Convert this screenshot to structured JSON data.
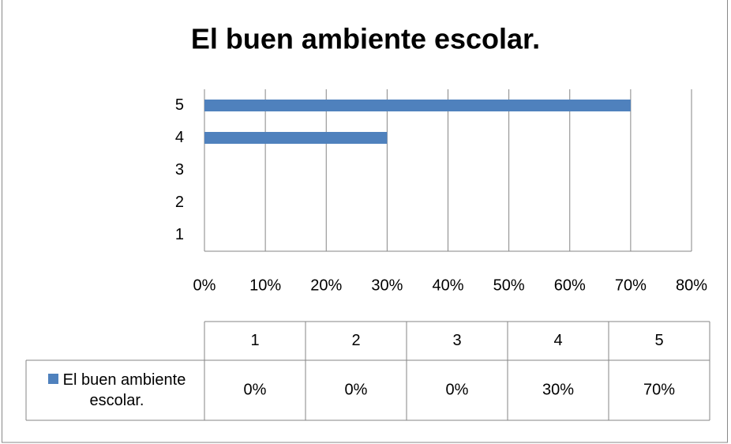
{
  "chart_data": {
    "type": "bar",
    "orientation": "horizontal",
    "title": "El buen ambiente escolar.",
    "categories": [
      "1",
      "2",
      "3",
      "4",
      "5"
    ],
    "series": [
      {
        "name": "El buen ambiente escolar.",
        "color": "#4f81bd",
        "values": [
          0,
          0,
          0,
          30,
          70
        ],
        "value_labels": [
          "0%",
          "0%",
          "0%",
          "30%",
          "70%"
        ]
      }
    ],
    "xlim": [
      0,
      80
    ],
    "xticks": [
      {
        "value": 0,
        "label": "0%"
      },
      {
        "value": 10,
        "label": "10%"
      },
      {
        "value": 20,
        "label": "20%"
      },
      {
        "value": 30,
        "label": "30%"
      },
      {
        "value": 40,
        "label": "40%"
      },
      {
        "value": 50,
        "label": "50%"
      },
      {
        "value": 60,
        "label": "60%"
      },
      {
        "value": 70,
        "label": "70%"
      },
      {
        "value": 80,
        "label": "80%"
      }
    ],
    "grid": true,
    "data_table": true
  }
}
